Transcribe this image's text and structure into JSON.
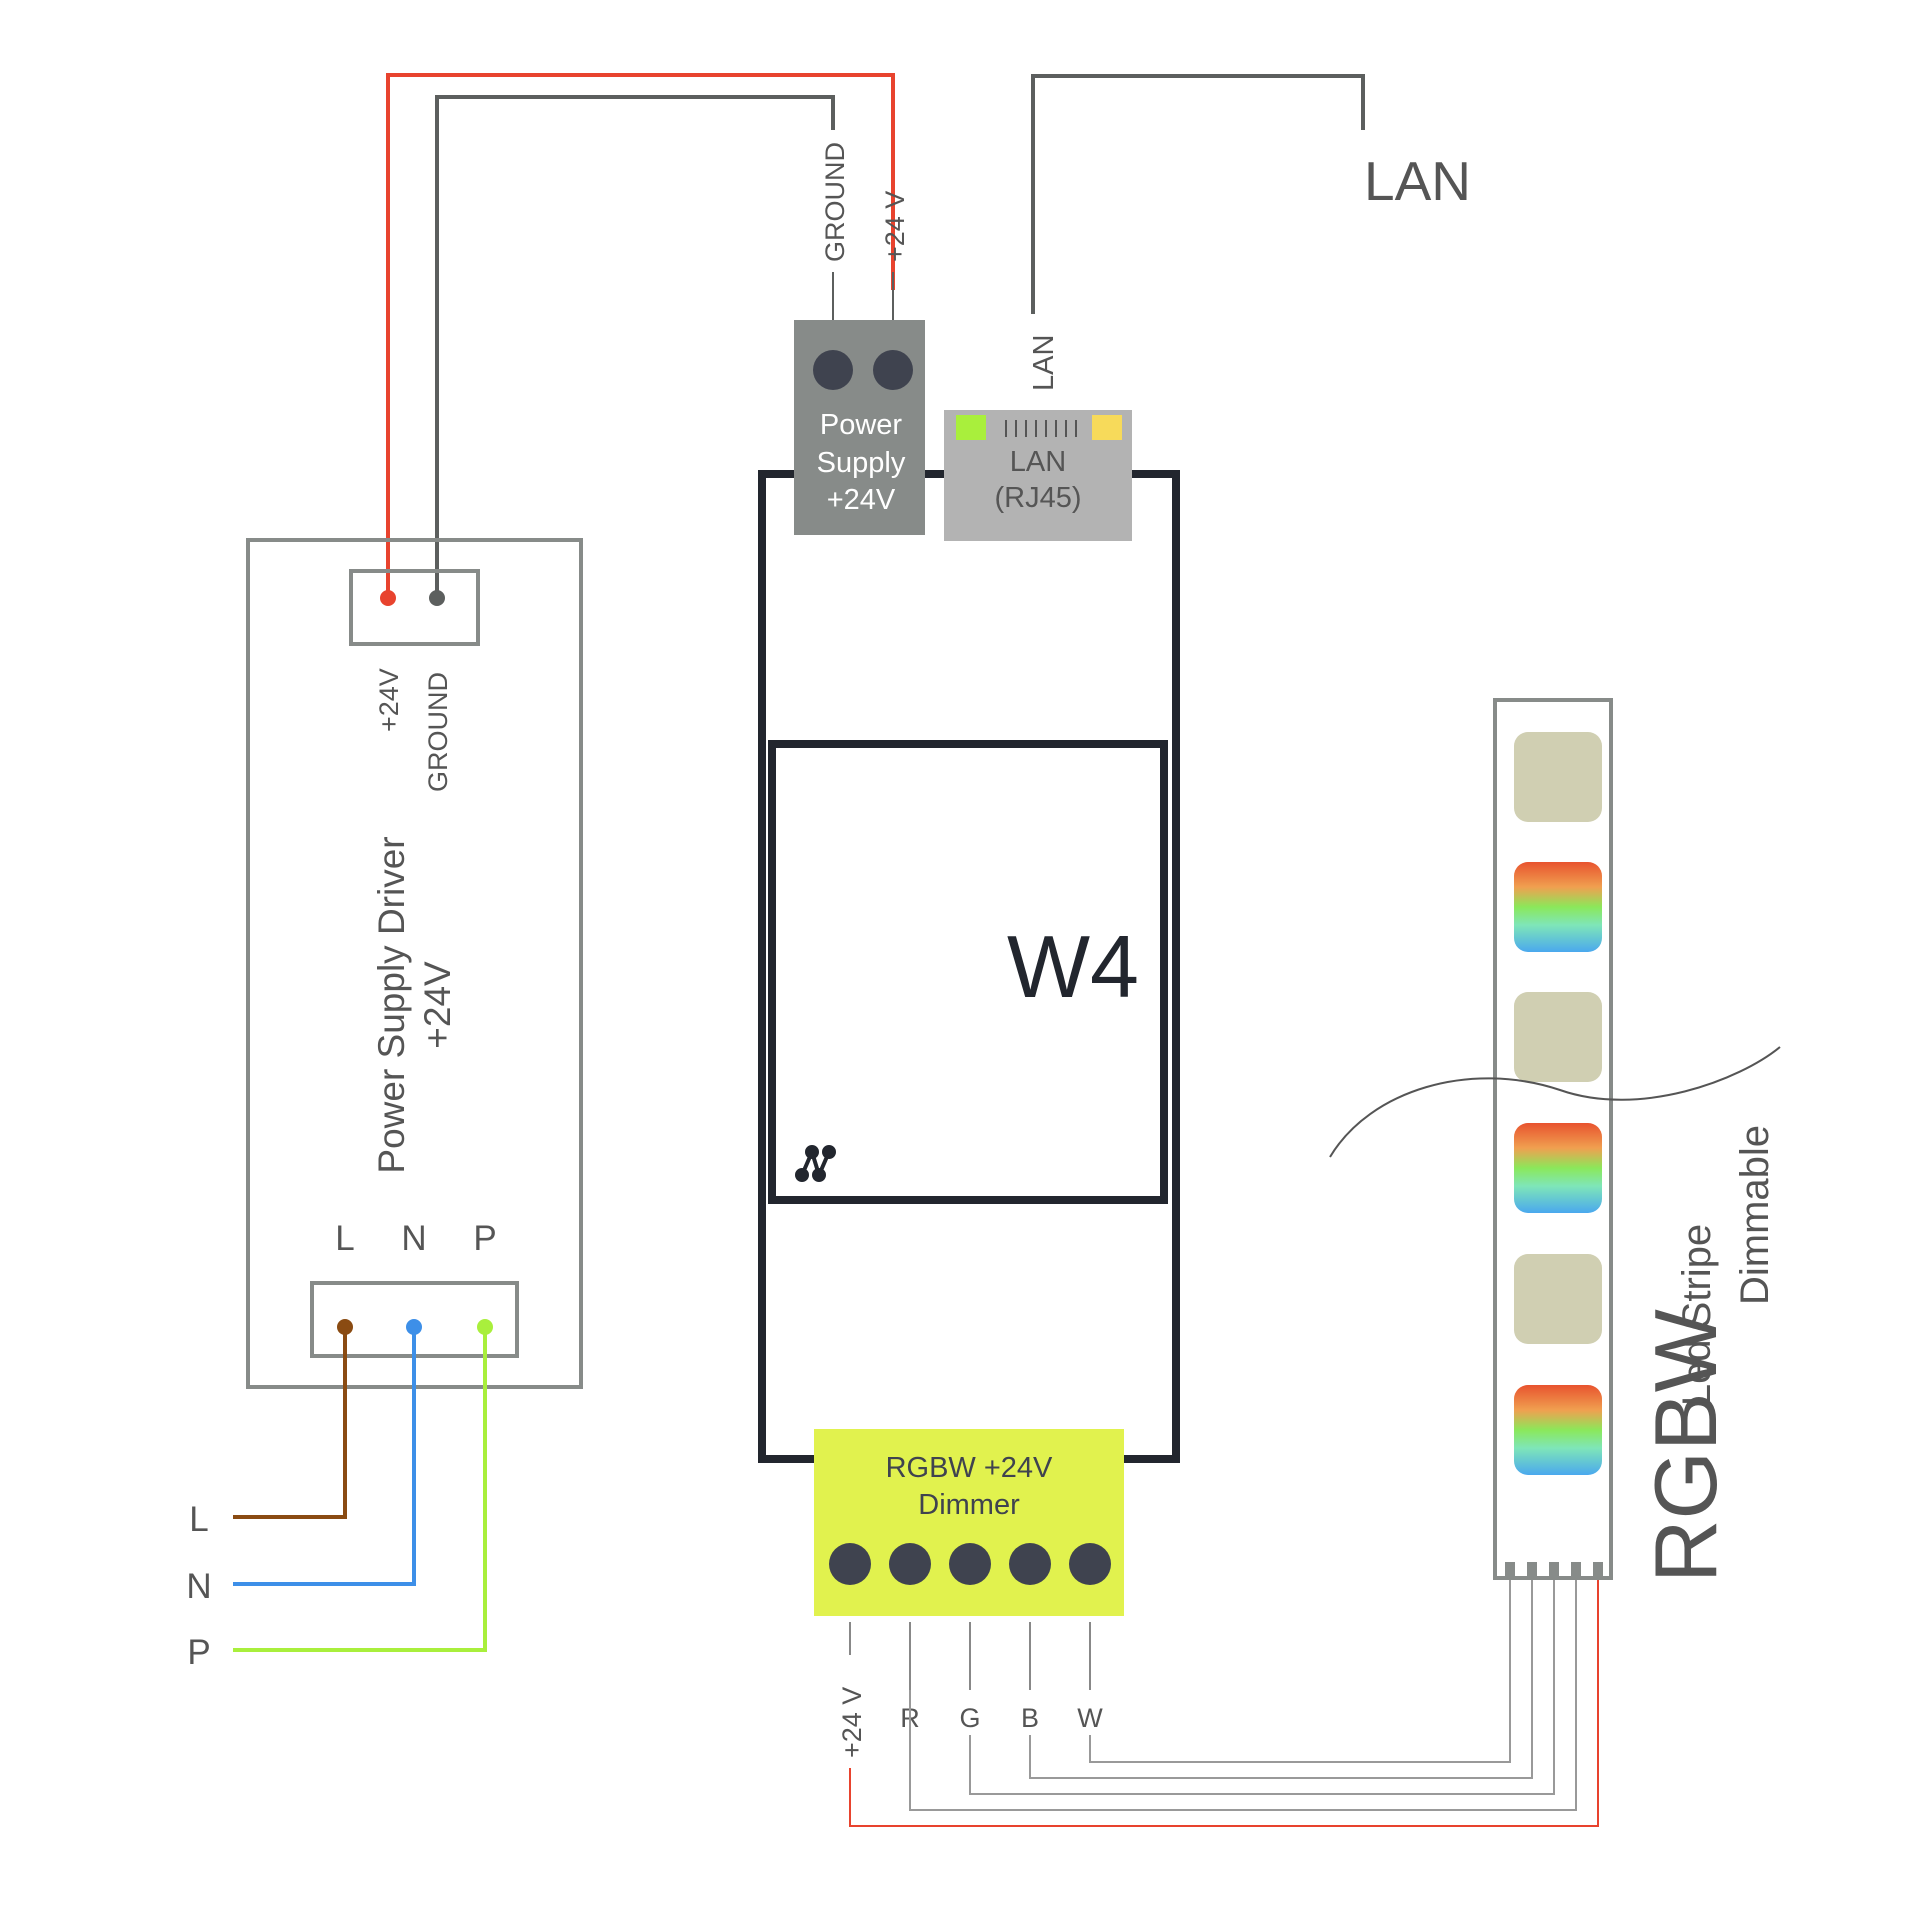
{
  "psu": {
    "title_line1": "Power Supply Driver",
    "title_line2": "+24V",
    "out_plus": "+24V",
    "out_ground": "GROUND",
    "in_l": "L",
    "in_n": "N",
    "in_p": "P"
  },
  "mains": {
    "l": "L",
    "n": "N",
    "p": "P"
  },
  "w4": {
    "name": "W4",
    "power_block_line1": "Power",
    "power_block_line2": "Supply",
    "power_block_line3": "+24V",
    "power_wire_ground": "GROUND",
    "power_wire_plus": "+24 V",
    "lan_block_line1": "LAN",
    "lan_block_line2": "(RJ45)",
    "lan_wire_label": "LAN",
    "dimmer_line1": "RGBW +24V",
    "dimmer_line2": "Dimmer",
    "out_plus": "+24 V",
    "out_r": "R",
    "out_g": "G",
    "out_b": "B",
    "out_w": "W"
  },
  "lan_network": "LAN",
  "strip": {
    "big_label": "RGBW",
    "small_line1": "Led Stripe",
    "small_line2": "Dimmable"
  },
  "colors": {
    "red_wire": "#e8432e",
    "ground_wire": "#5c5f5e",
    "brown_wire": "#8a4b12",
    "blue_wire": "#3d8fe8",
    "green_wire": "#a9ef3c",
    "dimmer": "#e1f24e",
    "power_block": "#878b89",
    "lan_block": "#b3b3b3",
    "w4_frame": "#22262e"
  }
}
